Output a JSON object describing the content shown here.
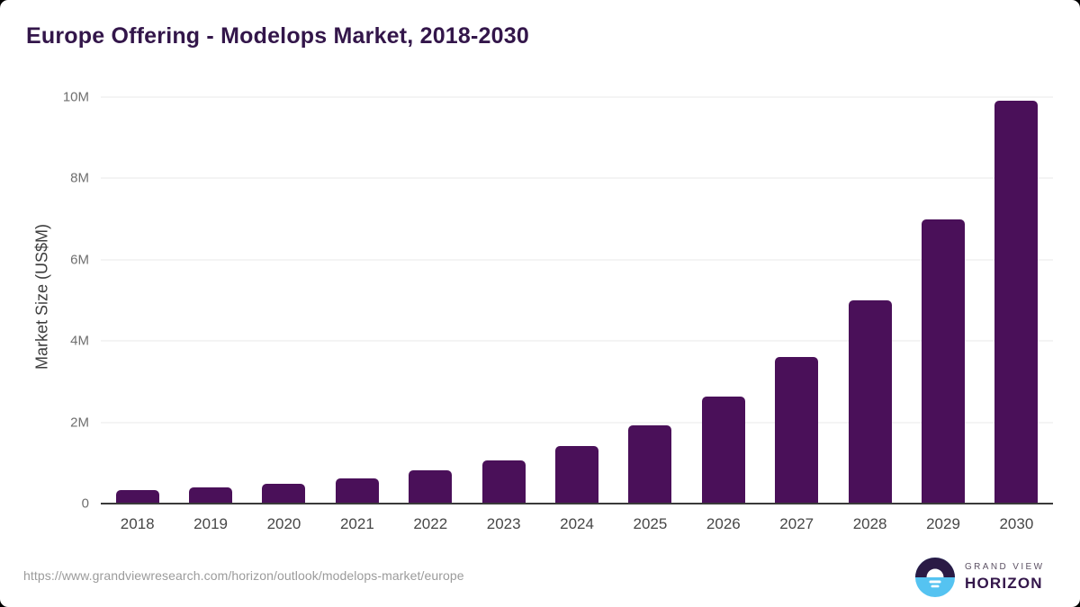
{
  "header": {
    "title": "Europe Offering - Modelops Market, 2018-2030"
  },
  "chart_data": {
    "type": "bar",
    "title": "Europe Offering - Modelops Market, 2018-2030",
    "categories": [
      "2018",
      "2019",
      "2020",
      "2021",
      "2022",
      "2023",
      "2024",
      "2025",
      "2026",
      "2027",
      "2028",
      "2029",
      "2030"
    ],
    "values": [
      0.33,
      0.39,
      0.48,
      0.62,
      0.82,
      1.06,
      1.41,
      1.92,
      2.63,
      3.6,
      5.0,
      7.0,
      9.92
    ],
    "xlabel": "",
    "ylabel": "Market Size (US$M)",
    "ylim": [
      0,
      10
    ],
    "yticks": [
      0,
      2,
      4,
      6,
      8,
      10
    ],
    "ytick_labels": [
      "0",
      "2M",
      "4M",
      "6M",
      "8M",
      "10M"
    ],
    "grid": "horizontal",
    "legend": "none",
    "bar_color": "#4a1059"
  },
  "footer": {
    "source_url": "https://www.grandviewresearch.com/horizon/outlook/modelops-market/europe",
    "logo": {
      "line1": "GRAND VIEW",
      "line2": "HORIZON",
      "icon": "horizon-sun-icon",
      "icon_colors": {
        "top": "#2a1a45",
        "bottom": "#55c3f1",
        "sun": "#ffffff"
      }
    }
  },
  "colors": {
    "title": "#33164a",
    "bar": "#4a1059",
    "gridline": "#e8e8e8",
    "axis_line": "#3a3a3a",
    "ytick_text": "#6f6f6f",
    "xtick_text": "#474747",
    "url_text": "#9b9b9b",
    "background": "#ffffff"
  }
}
